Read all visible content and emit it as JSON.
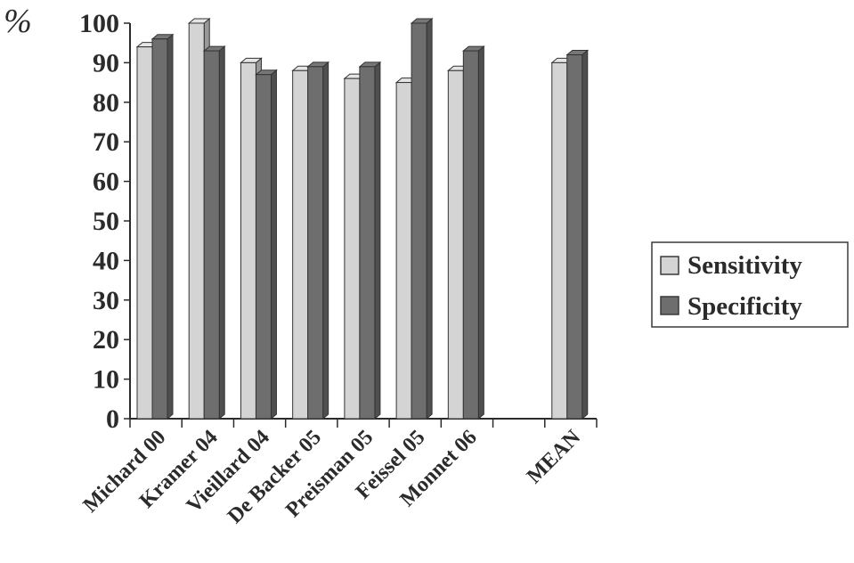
{
  "chart_data": {
    "type": "bar",
    "ylabel": "%",
    "ylim": [
      0,
      100
    ],
    "yticks": [
      0,
      10,
      20,
      30,
      40,
      50,
      60,
      70,
      80,
      90,
      100
    ],
    "categories": [
      "Michard 00",
      "Kramer 04",
      "Vieillard 04",
      "De Backer 05",
      "Preisman 05",
      "Feissel 05",
      "Monnet 06",
      "",
      "MEAN"
    ],
    "series": [
      {
        "name": "Sensitivity",
        "color": "#d4d4d4",
        "values": [
          94,
          100,
          90,
          88,
          86,
          85,
          88,
          null,
          90
        ]
      },
      {
        "name": "Specificity",
        "color": "#6e6e6e",
        "values": [
          96,
          93,
          87,
          89,
          89,
          100,
          93,
          null,
          92
        ]
      }
    ],
    "grid": false,
    "legend": "right",
    "style": "3d-bars"
  }
}
